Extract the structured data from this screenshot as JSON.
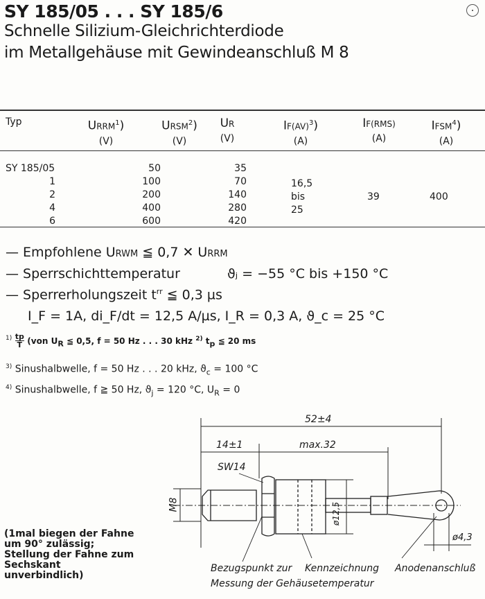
{
  "header": {
    "title": "SY 185/05 . . . SY 185/6",
    "subtitle_1": "Schnelle Silizium-Gleichrichterdiode",
    "subtitle_2": "im Metallgehäuse mit Gewindeanschluß M 8",
    "corner_icon": "circle-dot-icon"
  },
  "table": {
    "columns": [
      {
        "main": "Typ",
        "sub": "",
        "sup": "",
        "unit": ""
      },
      {
        "main": "U",
        "sub": "RRM",
        "sup": "1",
        ")": "",
        "unit": "(V)"
      },
      {
        "main": "U",
        "sub": "RSM",
        "sup": "2",
        "unit": "(V)"
      },
      {
        "main": "U",
        "sub": "R",
        "sup": "",
        "unit": "(V)"
      },
      {
        "main": "I",
        "sub": "F(AV)",
        "sup": "3",
        "unit": "(A)"
      },
      {
        "main": "I",
        "sub": "F(RMS)",
        "sup": "",
        "unit": "(A)"
      },
      {
        "main": "I",
        "sub": "FSM",
        "sup": "4",
        "unit": "(A)"
      }
    ],
    "rows": [
      {
        "typ": "SY  185/05",
        "urrm": "50",
        "ur": "35"
      },
      {
        "typ": "1",
        "urrm": "100",
        "ur": "70"
      },
      {
        "typ": "2",
        "urrm": "200",
        "ur": "140"
      },
      {
        "typ": "4",
        "urrm": "400",
        "ur": "280"
      },
      {
        "typ": "6",
        "urrm": "600",
        "ur": "420"
      }
    ],
    "ifav": [
      "16,5",
      "bis",
      "25"
    ],
    "ifrms": "39",
    "ifsm": "400"
  },
  "specs": {
    "line1": {
      "dash": "—",
      "text": "Empfohlene U",
      "sub1": "RWM",
      "rest": " ≦ 0,7 ✕ U",
      "sub2": "RRM"
    },
    "line2": {
      "dash": "—",
      "text": "Sperrschichttemperatur",
      "value": "ϑⱼ = −55 °C bis +150 °C"
    },
    "line3": {
      "dash": "—",
      "text": "Sperrerholungszeit t",
      "sup": "rr",
      "rest": " ≦ 0,3 µs"
    },
    "line4": "I_F = 1A, di_F/dt = 12,5 A/µs, I_R = 0,3 A, ϑ_c =  25 °C"
  },
  "footnotes": {
    "f1": {
      "mark": "1)",
      "num": "tp",
      "den": "T",
      "text": "(von U",
      "sub": "R",
      "rest": " ≦ 0,5, f = 50 Hz . . . 30 kHz",
      "mark2": "2)",
      "text2": " t",
      "sub2": "p",
      "rest2": " ≦ 20 ms"
    },
    "f3": {
      "mark": "3)",
      "text": "Sinushalbwelle, f = 50 Hz . . . 20 kHz, ϑ",
      "sub": "c",
      "rest": " = 100 °C"
    },
    "f4": {
      "mark": "4)",
      "text": "Sinushalbwelle, f ≧ 50 Hz, ϑ",
      "sub": "j",
      "rest": " = 120 °C, U",
      "sub2": "R",
      "rest2": " = 0"
    }
  },
  "drawing": {
    "dim_total": "52±4",
    "dim_thread": "14±1",
    "dim_body": "max.32",
    "wrench": "SW14",
    "thread": "M8",
    "diameter_body": "ø12,5",
    "diameter_hole": "ø4,3",
    "label_ref": "Bezugspunkt zur",
    "label_ref_2": "Messung der Gehäusetemperatur",
    "label_mark": "Kennzeichnung",
    "label_anode": "Anodenanschluß",
    "note": "(1mal biegen der Fahne um 90° zulässig; Stellung der Fahne zum Sechskant unverbindlich)"
  }
}
